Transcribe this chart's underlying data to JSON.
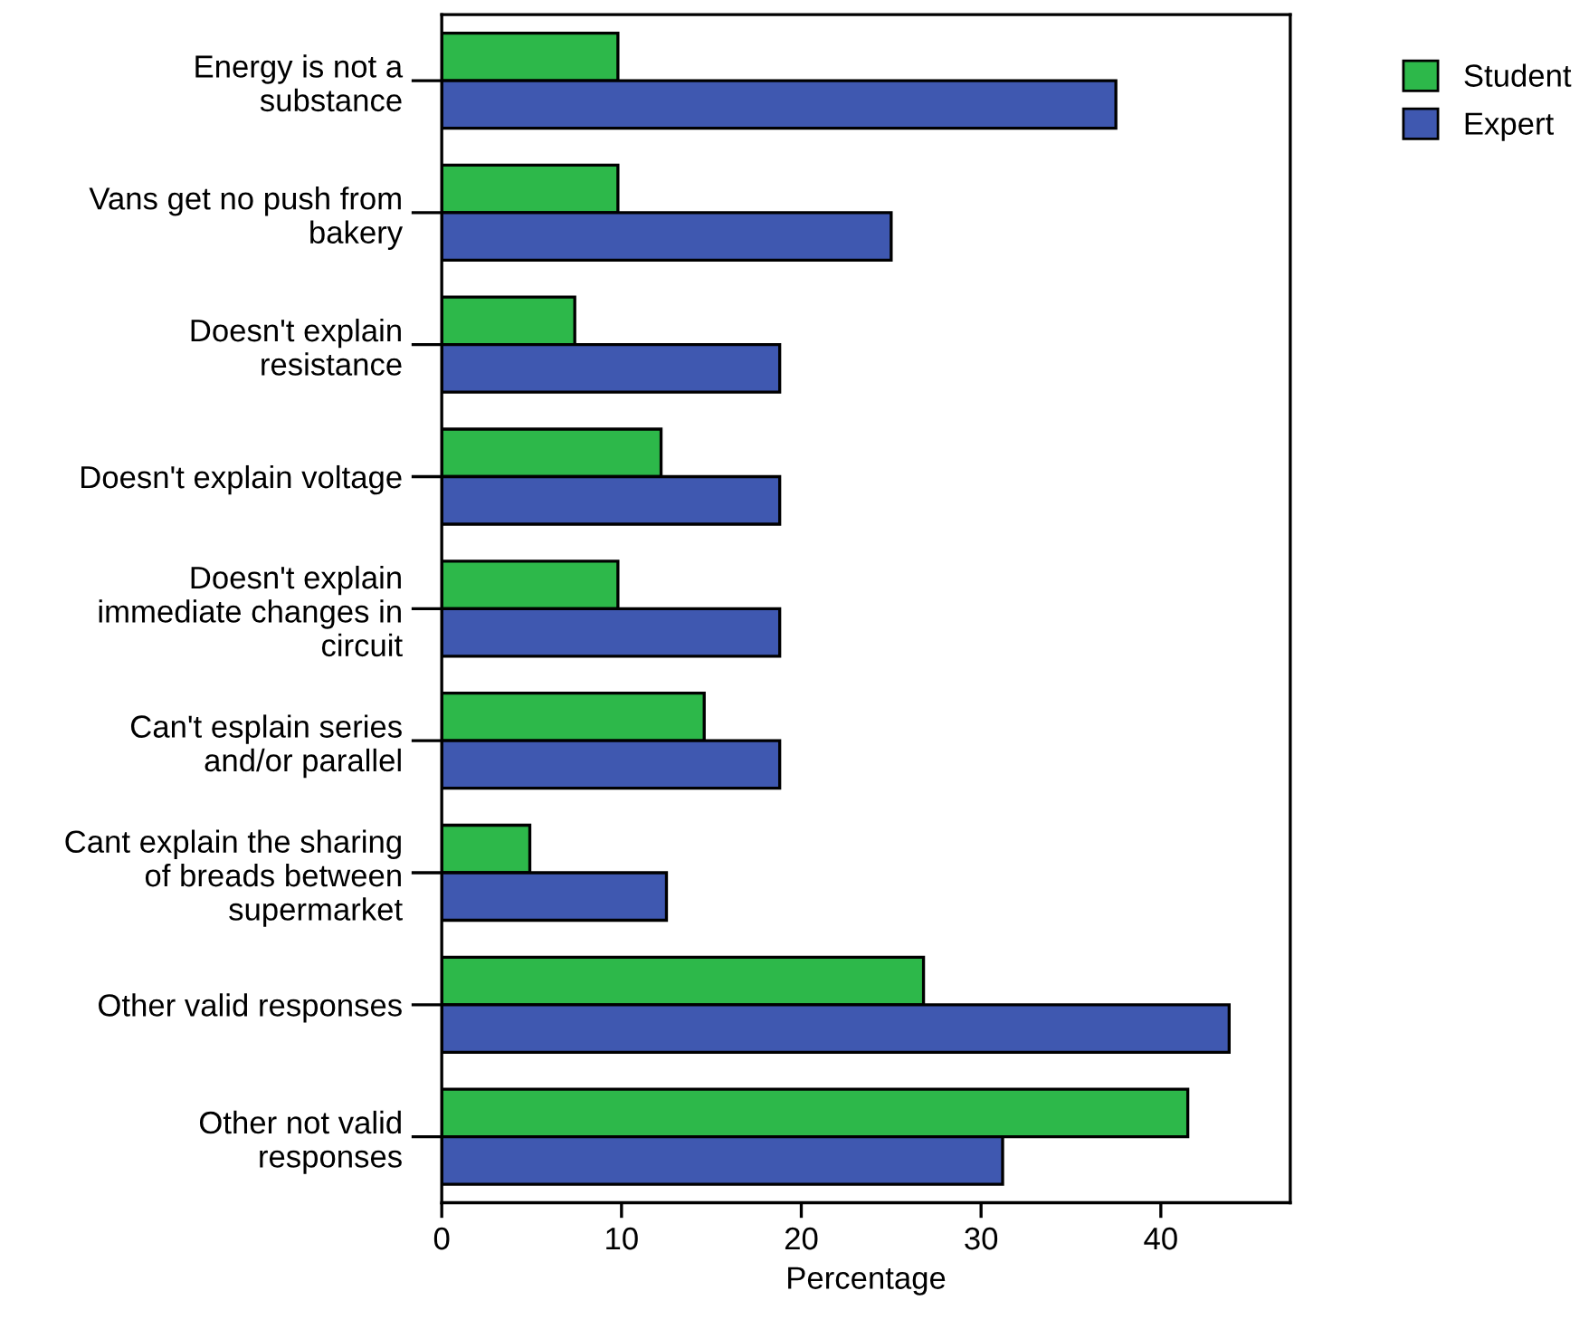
{
  "chart_data": {
    "type": "bar",
    "orientation": "horizontal",
    "xlabel": "Percentage",
    "categories": [
      "Energy is not a\nsubstance",
      "Vans get no push from\nbakery",
      "Doesn't explain\nresistance",
      "Doesn't explain voltage",
      "Doesn't explain\nimmediate changes in\ncircuit",
      "Can't esplain series\nand/or parallel",
      "Cant explain the sharing\nof breads between\nsupermarket",
      "Other valid responses",
      "Other not valid\nresponses"
    ],
    "series": [
      {
        "name": "Student",
        "color": "#2db84a",
        "values": [
          9.8,
          9.8,
          7.4,
          12.2,
          9.8,
          14.6,
          4.9,
          26.8,
          41.5
        ]
      },
      {
        "name": "Expert",
        "color": "#3f58b0",
        "values": [
          37.5,
          25.0,
          18.8,
          18.8,
          18.8,
          18.8,
          12.5,
          43.8,
          31.2
        ]
      }
    ],
    "xlim": [
      0,
      47.2
    ],
    "xticks": [
      0,
      10,
      20,
      30,
      40
    ],
    "grid": false,
    "legend": "top right"
  }
}
